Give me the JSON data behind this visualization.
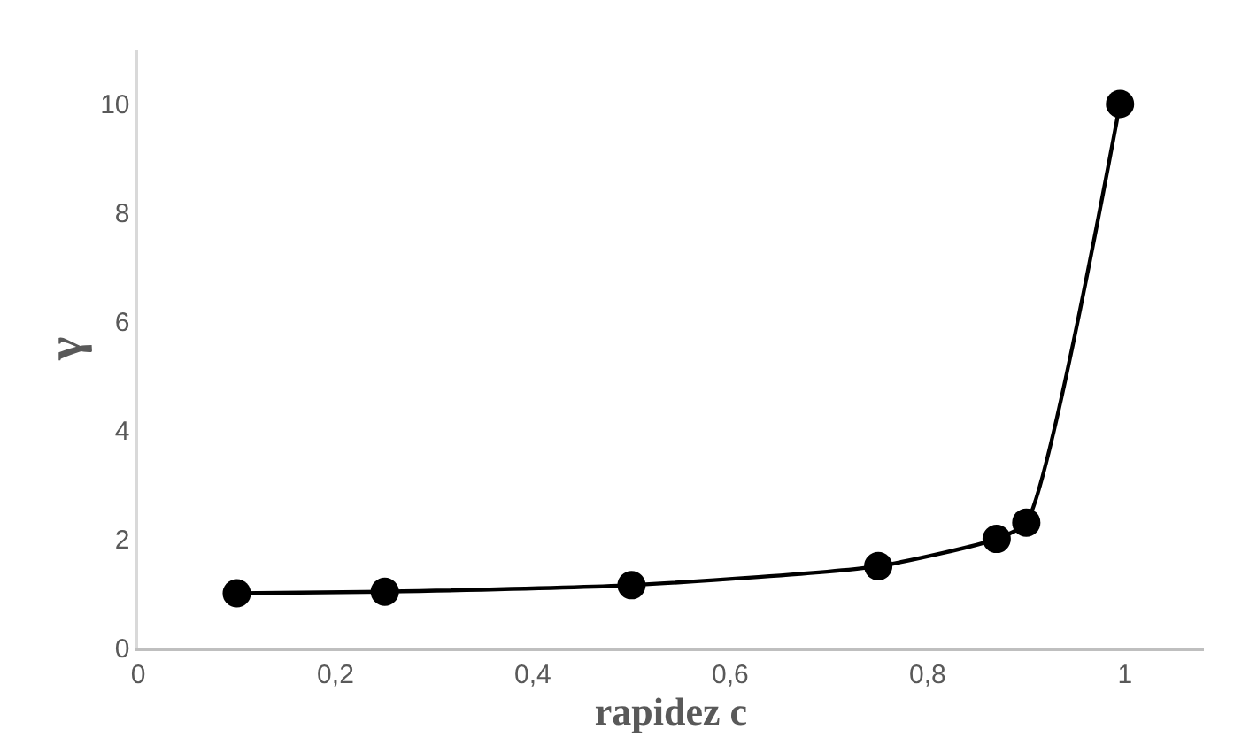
{
  "chart_data": {
    "type": "line",
    "xlabel": "rapidez c",
    "ylabel": "γ",
    "series": [
      {
        "color": "#000000",
        "x": [
          0.1,
          0.25,
          0.5,
          0.75,
          0.87,
          0.9,
          0.995
        ],
        "values": [
          1.0,
          1.03,
          1.15,
          1.5,
          2.0,
          2.3,
          10.0
        ]
      }
    ],
    "xlim": [
      0,
      1.08
    ],
    "xticks": [
      {
        "value": 0,
        "label": "0"
      },
      {
        "value": 0.2,
        "label": "0,2"
      },
      {
        "value": 0.4,
        "label": "0,4"
      },
      {
        "value": 0.6,
        "label": "0,6"
      },
      {
        "value": 0.8,
        "label": "0,8"
      },
      {
        "value": 1,
        "label": "1"
      }
    ],
    "ylim": [
      0,
      11
    ],
    "yticks": [
      0,
      2,
      4,
      6,
      8,
      10
    ],
    "grid": false,
    "marker": "circle",
    "line_style": "solid"
  }
}
